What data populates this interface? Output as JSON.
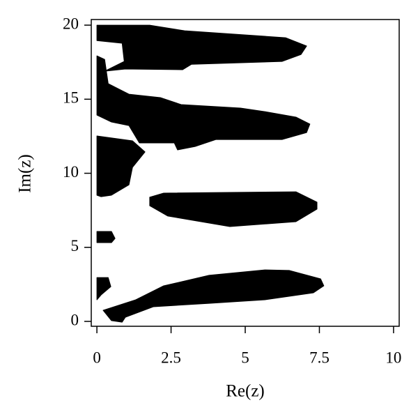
{
  "chart_data": {
    "type": "region",
    "x_label": "Re(z)",
    "y_label": "Im(z)",
    "xlim": [
      -0.19,
      10.19
    ],
    "ylim": [
      -0.33,
      20.38
    ],
    "xticks": [
      0,
      2.5,
      5,
      7.5,
      10
    ],
    "yticks": [
      0,
      5,
      10,
      15,
      20
    ],
    "color": "#000000",
    "regions": [
      {
        "x": [
          0,
          1.78,
          2.96,
          6.36,
          7.07,
          6.88,
          6.24,
          3.19,
          2.89,
          0.96,
          0.26,
          0.92,
          0.85,
          0
        ],
        "y": [
          20.0,
          20.0,
          19.62,
          19.15,
          18.59,
          18.02,
          17.55,
          17.36,
          16.99,
          17.04,
          16.89,
          17.55,
          18.78,
          18.96
        ]
      },
      {
        "x": [
          0,
          0.26,
          0.38,
          1.08,
          2.14,
          2.84,
          4.84,
          5.66,
          6.71,
          7.18,
          7.07,
          6.24,
          4.01,
          3.31,
          2.72,
          2.61,
          1.43,
          1.08,
          0.49,
          0
        ],
        "y": [
          17.93,
          17.69,
          16.05,
          15.34,
          15.11,
          14.64,
          14.4,
          14.16,
          13.79,
          13.32,
          12.75,
          12.28,
          12.28,
          11.81,
          11.58,
          12.05,
          12.05,
          13.22,
          13.46,
          13.93
        ]
      },
      {
        "x": [
          0,
          1.2,
          1.62,
          1.2,
          1.08,
          0.49,
          0.14,
          0
        ],
        "y": [
          12.52,
          12.19,
          11.44,
          10.4,
          9.22,
          8.52,
          8.42,
          8.52
        ]
      },
      {
        "x": [
          2.25,
          6.71,
          7.42,
          7.42,
          6.71,
          4.48,
          2.39,
          1.78,
          1.78
        ],
        "y": [
          8.66,
          8.75,
          8.05,
          7.58,
          6.73,
          6.4,
          7.11,
          7.81,
          8.38
        ]
      },
      {
        "x": [
          0,
          0.49,
          0.61,
          0.49,
          0
        ],
        "y": [
          6.07,
          6.07,
          5.6,
          5.32,
          5.32
        ]
      },
      {
        "x": [
          0,
          0.38,
          0.47,
          0.14,
          0
        ],
        "y": [
          2.96,
          2.96,
          2.35,
          1.79,
          1.46
        ]
      },
      {
        "x": [
          0.21,
          1.31,
          2.25,
          3.78,
          5.66,
          6.48,
          7.54,
          7.65,
          7.3,
          5.66,
          3.78,
          1.9,
          0.96,
          0.85,
          0.49
        ],
        "y": [
          0.75,
          1.46,
          2.4,
          3.11,
          3.48,
          3.44,
          2.87,
          2.4,
          1.93,
          1.46,
          1.22,
          0.99,
          0.28,
          -0.05,
          0.05
        ]
      }
    ]
  }
}
